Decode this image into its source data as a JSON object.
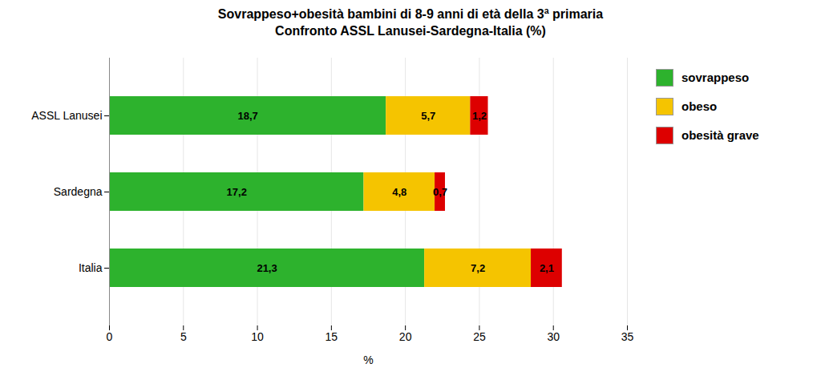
{
  "chart_data": {
    "type": "bar",
    "orientation": "horizontal",
    "stacked": true,
    "title": "Sovrappeso+obesità bambini di 8-9 anni di età della 3ª primaria",
    "subtitle": "Confronto ASSL Lanusei-Sardegna-Italia (%)",
    "categories": [
      "ASSL Lanusei",
      "Sardegna",
      "Italia"
    ],
    "series": [
      {
        "name": "sovrappeso",
        "color": "#2db22d",
        "values": [
          18.7,
          17.2,
          21.3
        ],
        "value_labels": [
          "18,7",
          "17,2",
          "21,3"
        ]
      },
      {
        "name": "obeso",
        "color": "#f5c400",
        "values": [
          5.7,
          4.8,
          7.2
        ],
        "value_labels": [
          "5,7",
          "4,8",
          "7,2"
        ]
      },
      {
        "name": "obesità grave",
        "color": "#dd0000",
        "values": [
          1.2,
          0.7,
          2.1
        ],
        "value_labels": [
          "1,2",
          "0,7",
          "2,1"
        ]
      }
    ],
    "x_label": "%",
    "xlim": [
      0,
      35
    ],
    "xticks": [
      0,
      5,
      10,
      15,
      20,
      25,
      30,
      35
    ],
    "grid": true,
    "legend": "right",
    "data_labels": true
  }
}
